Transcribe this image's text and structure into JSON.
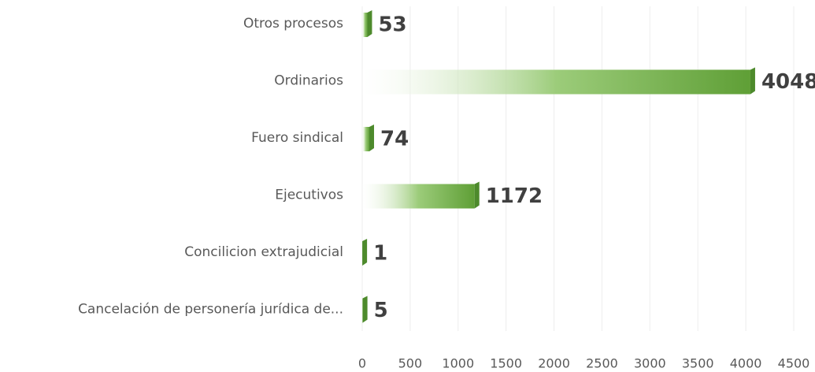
{
  "chart_data": {
    "type": "bar",
    "orientation": "horizontal",
    "categories": [
      "Otros procesos",
      "Ordinarios",
      "Fuero sindical",
      "Ejecutivos",
      "Concilicion extrajudicial",
      "Cancelación de personería jurídica de..."
    ],
    "values": [
      53,
      4048,
      74,
      1172,
      1,
      5
    ],
    "color": "#6aaa3e",
    "xlim": [
      0,
      4500
    ],
    "xticks": [
      0,
      500,
      1000,
      1500,
      2000,
      2500,
      3000,
      3500,
      4000,
      4500
    ],
    "grid": true
  }
}
